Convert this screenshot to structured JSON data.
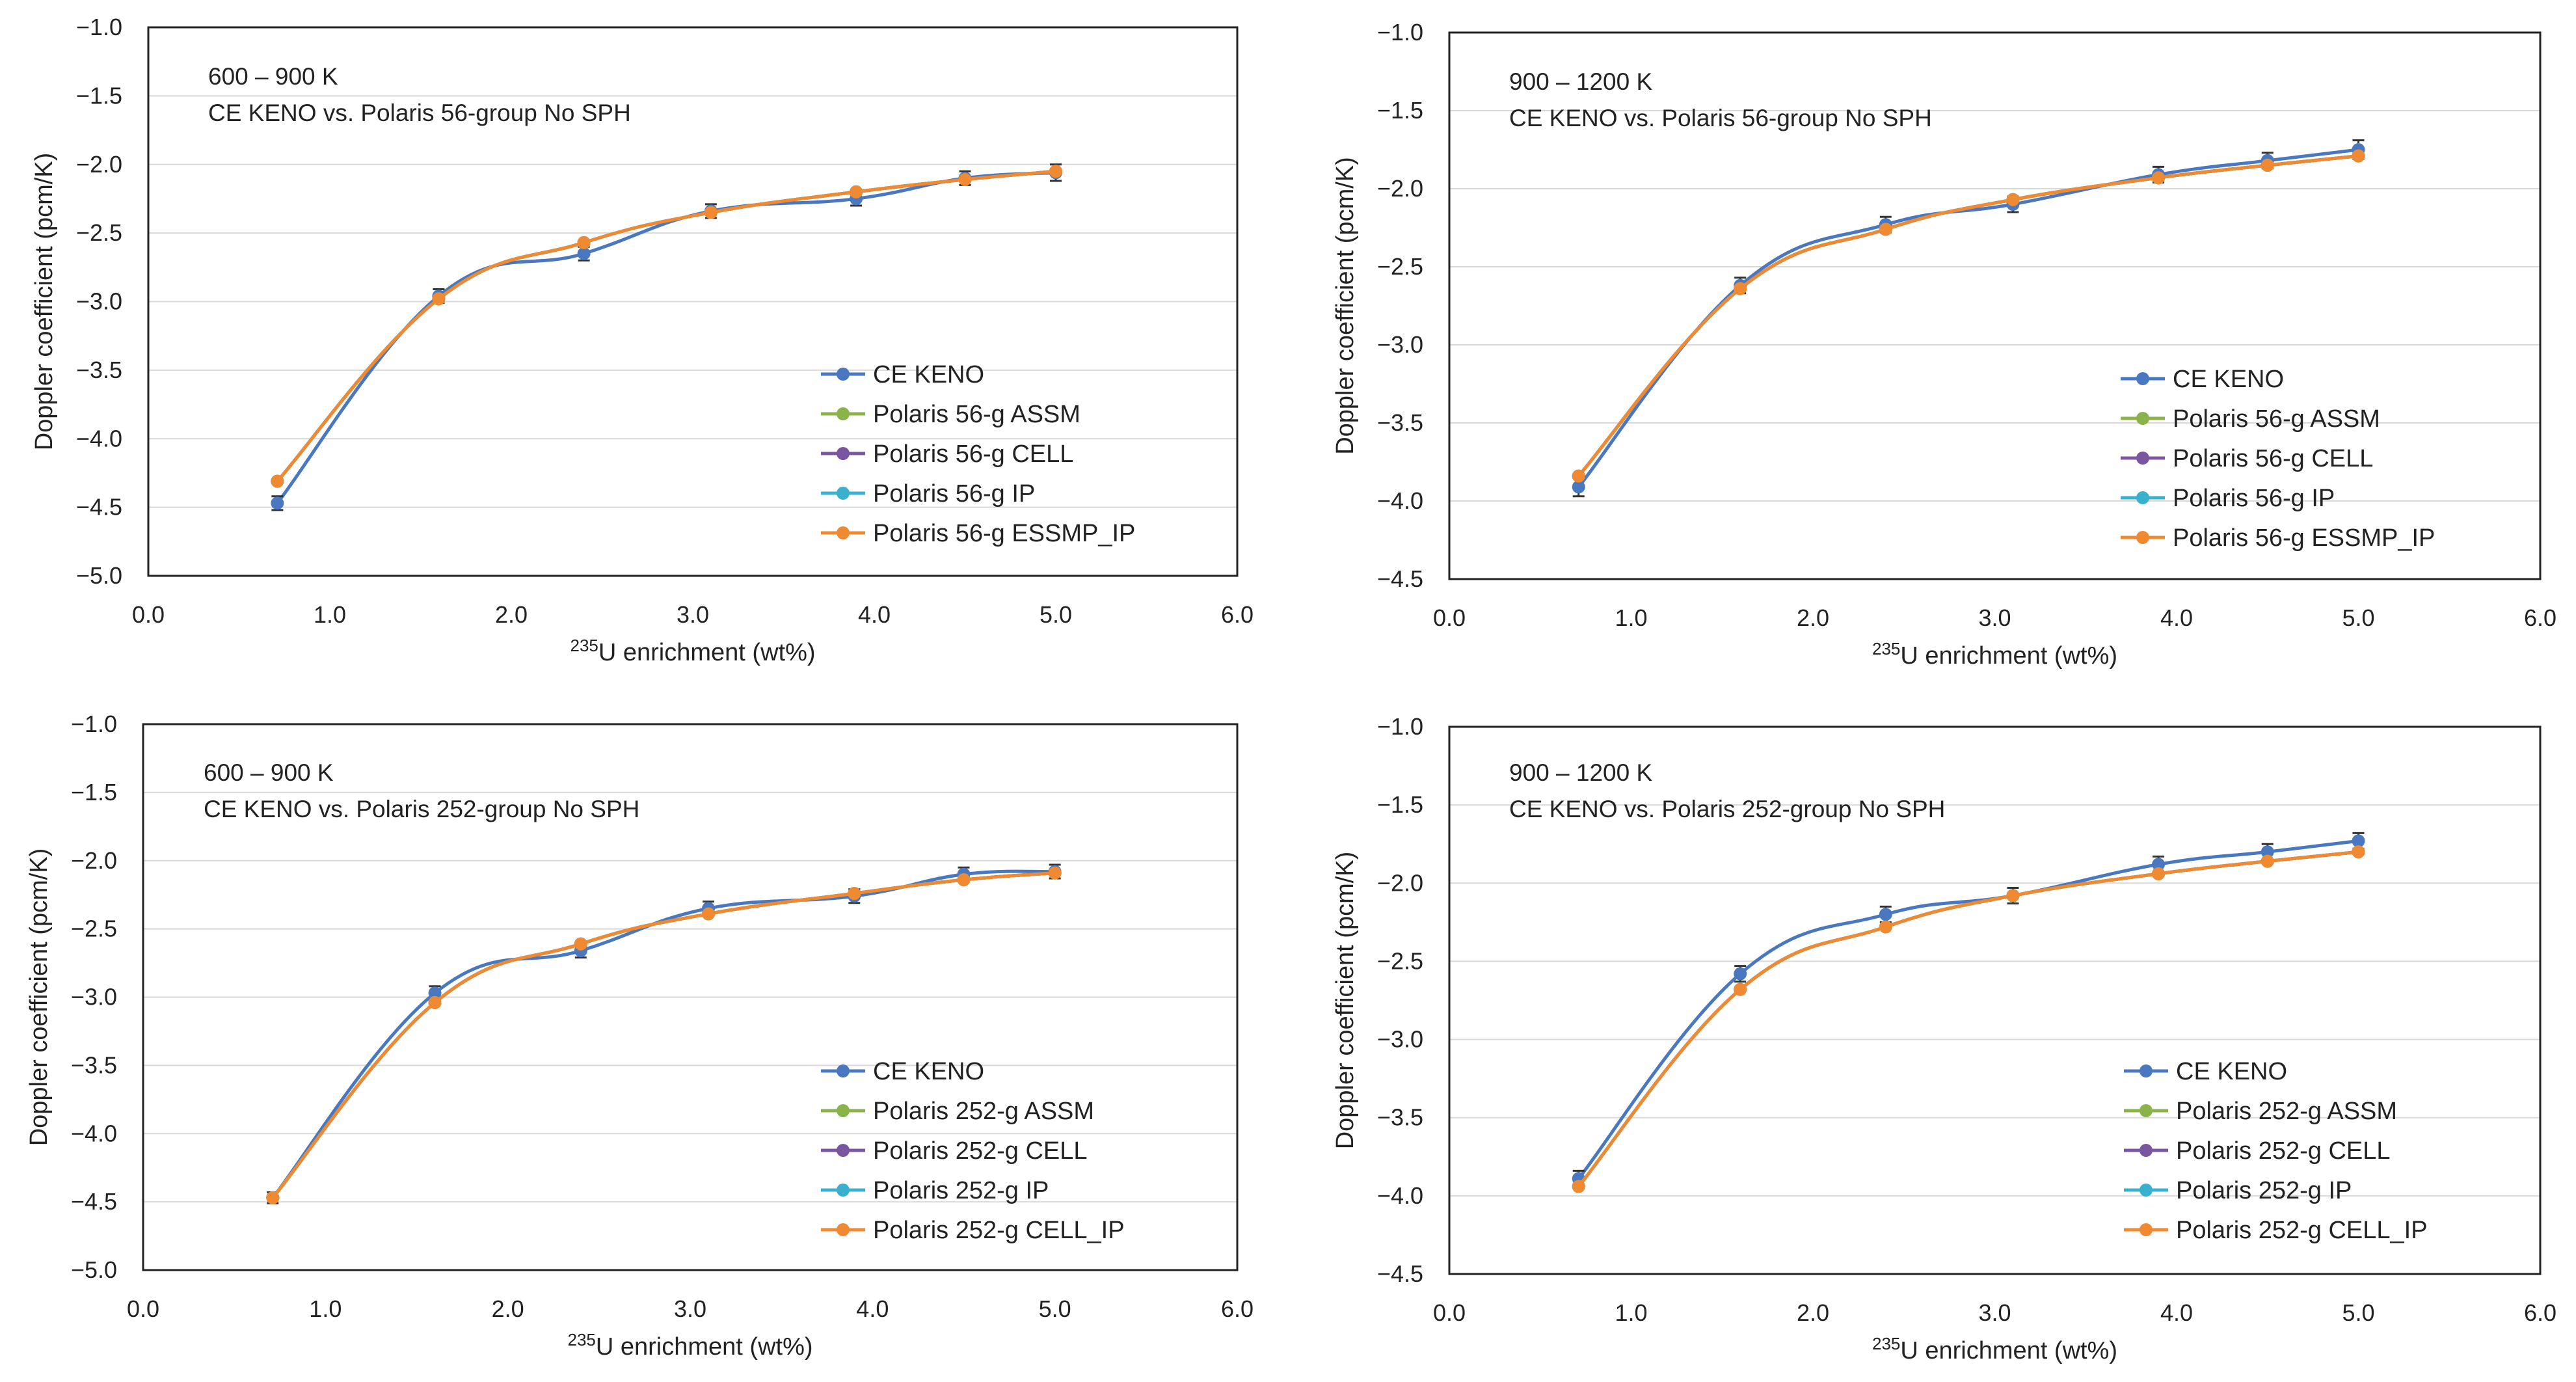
{
  "chart_data": [
    {
      "type": "line",
      "panel": "top-left",
      "annotation": [
        "600 – 900 K",
        "CE KENO vs. Polaris 56-group No SPH"
      ],
      "ylabel": "Doppler coefficient (pcm/K)",
      "xlabel_sup": "235",
      "xlabel_main": "U enrichment (wt%)",
      "xlim": [
        0,
        6
      ],
      "ylim": [
        -5.0,
        -1.0
      ],
      "xticks": [
        "0.0",
        "1.0",
        "2.0",
        "3.0",
        "4.0",
        "5.0",
        "6.0"
      ],
      "yticks": [
        "−1.0",
        "−1.5",
        "−2.0",
        "−2.5",
        "−3.0",
        "−3.5",
        "−4.0",
        "−4.5",
        "−5.0"
      ],
      "x": [
        0.711,
        1.6,
        2.4,
        3.1,
        3.9,
        4.5,
        5.0
      ],
      "series": [
        {
          "name": "CE KENO",
          "values": [
            -4.47,
            -2.96,
            -2.65,
            -2.34,
            -2.25,
            -2.1,
            -2.06
          ],
          "errors": [
            0.05,
            0.05,
            0.05,
            0.05,
            0.05,
            0.05,
            0.06
          ]
        },
        {
          "name": "Polaris 56-g ASSM",
          "values": [
            -4.31,
            -2.98,
            -2.57,
            -2.35,
            -2.2,
            -2.11,
            -2.05
          ]
        },
        {
          "name": "Polaris 56-g CELL",
          "values": [
            -4.31,
            -2.98,
            -2.57,
            -2.35,
            -2.2,
            -2.11,
            -2.05
          ]
        },
        {
          "name": "Polaris 56-g IP",
          "values": [
            -4.31,
            -2.98,
            -2.57,
            -2.35,
            -2.2,
            -2.11,
            -2.05
          ]
        },
        {
          "name": "Polaris 56-g ESSMP_IP",
          "values": [
            -4.31,
            -2.98,
            -2.57,
            -2.35,
            -2.2,
            -2.11,
            -2.05
          ]
        }
      ]
    },
    {
      "type": "line",
      "panel": "top-right",
      "annotation": [
        "900 – 1200 K",
        "CE KENO vs. Polaris 56-group No SPH"
      ],
      "ylabel": "Doppler coefficient (pcm/K)",
      "xlabel_sup": "235",
      "xlabel_main": "U enrichment (wt%)",
      "xlim": [
        0,
        6
      ],
      "ylim": [
        -4.5,
        -1.0
      ],
      "xticks": [
        "0.0",
        "1.0",
        "2.0",
        "3.0",
        "4.0",
        "5.0",
        "6.0"
      ],
      "yticks": [
        "−1.0",
        "−1.5",
        "−2.0",
        "−2.5",
        "−3.0",
        "−3.5",
        "−4.0",
        "−4.5"
      ],
      "x": [
        0.711,
        1.6,
        2.4,
        3.1,
        3.9,
        4.5,
        5.0
      ],
      "series": [
        {
          "name": "CE KENO",
          "values": [
            -3.91,
            -2.62,
            -2.23,
            -2.1,
            -1.91,
            -1.82,
            -1.75
          ],
          "errors": [
            0.06,
            0.05,
            0.05,
            0.05,
            0.05,
            0.05,
            0.06
          ]
        },
        {
          "name": "Polaris 56-g ASSM",
          "values": [
            -3.84,
            -2.64,
            -2.26,
            -2.07,
            -1.93,
            -1.85,
            -1.79
          ]
        },
        {
          "name": "Polaris 56-g CELL",
          "values": [
            -3.84,
            -2.64,
            -2.26,
            -2.07,
            -1.93,
            -1.85,
            -1.79
          ]
        },
        {
          "name": "Polaris 56-g IP",
          "values": [
            -3.84,
            -2.64,
            -2.26,
            -2.07,
            -1.93,
            -1.85,
            -1.79
          ]
        },
        {
          "name": "Polaris 56-g ESSMP_IP",
          "values": [
            -3.84,
            -2.64,
            -2.26,
            -2.07,
            -1.93,
            -1.85,
            -1.79
          ]
        }
      ]
    },
    {
      "type": "line",
      "panel": "bottom-left",
      "annotation": [
        "600 – 900 K",
        "CE KENO vs. Polaris 252-group No SPH"
      ],
      "ylabel": "Doppler coefficient (pcm/K)",
      "xlabel_sup": "235",
      "xlabel_main": "U enrichment (wt%)",
      "xlim": [
        0,
        6
      ],
      "ylim": [
        -5.0,
        -1.0
      ],
      "xticks": [
        "0.0",
        "1.0",
        "2.0",
        "3.0",
        "4.0",
        "5.0",
        "6.0"
      ],
      "yticks": [
        "−1.0",
        "−1.5",
        "−2.0",
        "−2.5",
        "−3.0",
        "−3.5",
        "−4.0",
        "−4.5",
        "−5.0"
      ],
      "x": [
        0.711,
        1.6,
        2.4,
        3.1,
        3.9,
        4.5,
        5.0
      ],
      "series": [
        {
          "name": "CE KENO",
          "values": [
            -4.47,
            -2.97,
            -2.66,
            -2.35,
            -2.26,
            -2.1,
            -2.08
          ],
          "errors": [
            0.04,
            0.05,
            0.05,
            0.05,
            0.05,
            0.05,
            0.05
          ]
        },
        {
          "name": "Polaris 252-g ASSM",
          "values": [
            -4.47,
            -3.04,
            -2.61,
            -2.39,
            -2.24,
            -2.14,
            -2.09
          ]
        },
        {
          "name": "Polaris 252-g CELL",
          "values": [
            -4.47,
            -3.04,
            -2.61,
            -2.39,
            -2.24,
            -2.14,
            -2.09
          ]
        },
        {
          "name": "Polaris 252-g IP",
          "values": [
            -4.47,
            -3.04,
            -2.61,
            -2.39,
            -2.24,
            -2.14,
            -2.09
          ]
        },
        {
          "name": "Polaris 252-g CELL_IP",
          "values": [
            -4.47,
            -3.04,
            -2.61,
            -2.39,
            -2.24,
            -2.14,
            -2.09
          ]
        }
      ]
    },
    {
      "type": "line",
      "panel": "bottom-right",
      "annotation": [
        "900 – 1200 K",
        "CE KENO vs. Polaris 252-group No SPH"
      ],
      "ylabel": "Doppler coefficient (pcm/K)",
      "xlabel_sup": "235",
      "xlabel_main": "U enrichment (wt%)",
      "xlim": [
        0,
        6
      ],
      "ylim": [
        -4.5,
        -1.0
      ],
      "xticks": [
        "0.0",
        "1.0",
        "2.0",
        "3.0",
        "4.0",
        "5.0",
        "6.0"
      ],
      "yticks": [
        "−1.0",
        "−1.5",
        "−2.0",
        "−2.5",
        "−3.0",
        "−3.5",
        "−4.0",
        "−4.5"
      ],
      "x": [
        0.711,
        1.6,
        2.4,
        3.1,
        3.9,
        4.5,
        5.0
      ],
      "series": [
        {
          "name": "CE KENO",
          "values": [
            -3.89,
            -2.58,
            -2.2,
            -2.08,
            -1.88,
            -1.8,
            -1.73
          ],
          "errors": [
            0.05,
            0.05,
            0.05,
            0.05,
            0.05,
            0.05,
            0.05
          ]
        },
        {
          "name": "Polaris 252-g ASSM",
          "values": [
            -3.94,
            -2.68,
            -2.28,
            -2.08,
            -1.94,
            -1.86,
            -1.8
          ]
        },
        {
          "name": "Polaris 252-g CELL",
          "values": [
            -3.94,
            -2.68,
            -2.28,
            -2.08,
            -1.94,
            -1.86,
            -1.8
          ]
        },
        {
          "name": "Polaris 252-g IP",
          "values": [
            -3.94,
            -2.68,
            -2.28,
            -2.08,
            -1.94,
            -1.86,
            -1.8
          ]
        },
        {
          "name": "Polaris 252-g CELL_IP",
          "values": [
            -3.94,
            -2.68,
            -2.28,
            -2.08,
            -1.94,
            -1.86,
            -1.8
          ]
        }
      ]
    }
  ],
  "colors": {
    "series": [
      "#4a78c0",
      "#8ab44a",
      "#7a55a0",
      "#3ab0cf",
      "#f08a32"
    ],
    "grid": "#d9d9d9",
    "frame": "#222222",
    "text": "#222222"
  }
}
